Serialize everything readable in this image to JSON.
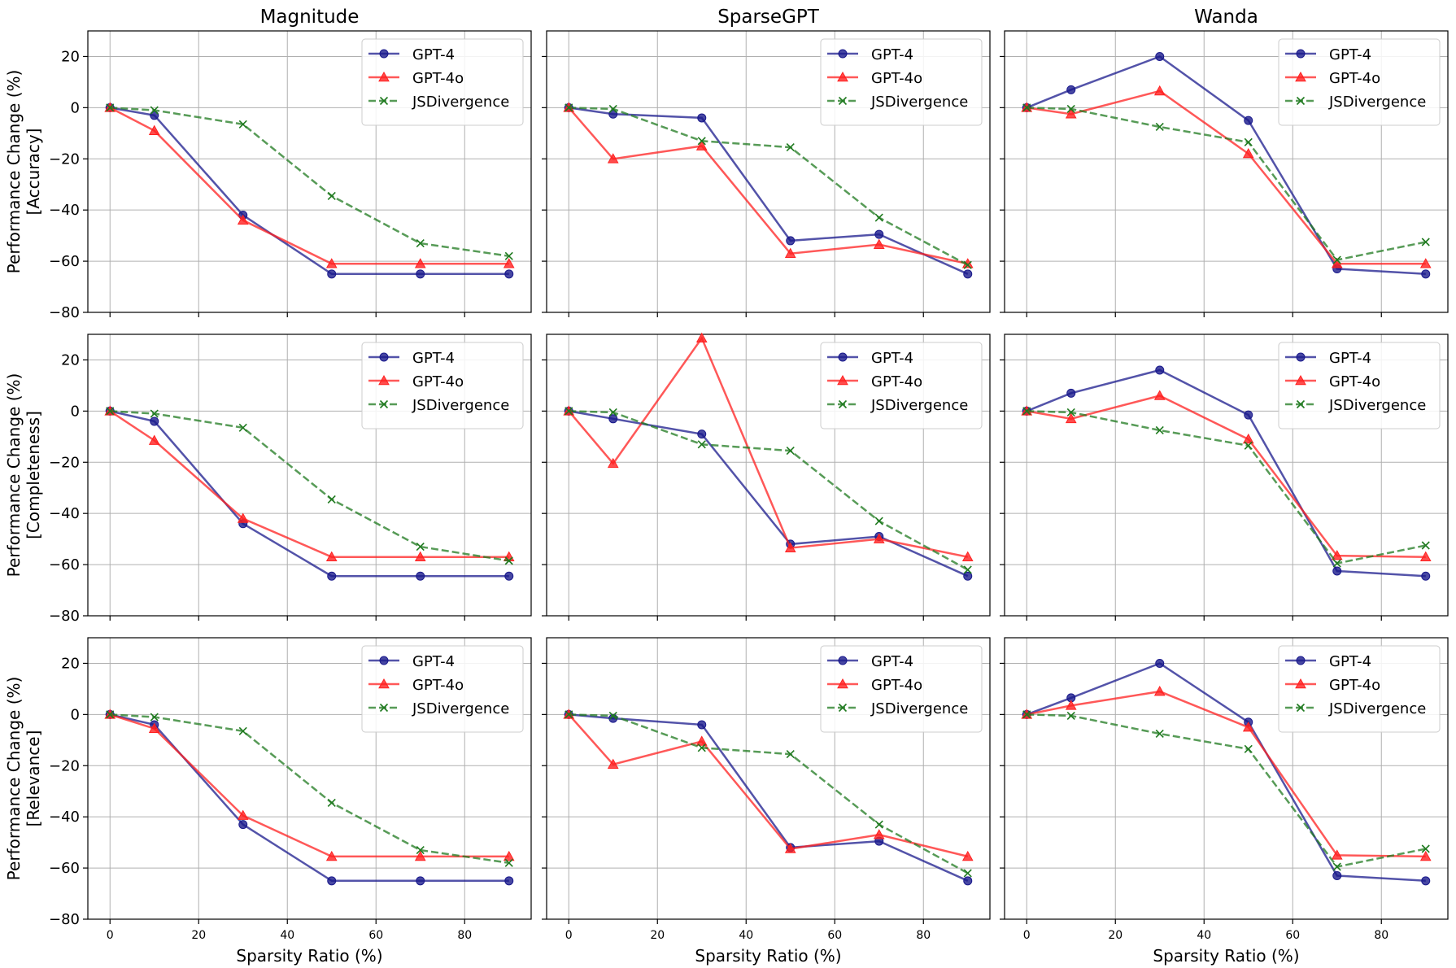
{
  "chart_data": {
    "type": "line",
    "column_titles": [
      "Magnitude",
      "SparseGPT",
      "Wanda"
    ],
    "row_labels": [
      [
        "Performance Change (%)",
        "[Accuracy]"
      ],
      [
        "Performance Change (%)",
        "[Completeness]"
      ],
      [
        "Performance Change (%)",
        "[Relevance]"
      ]
    ],
    "xlabel": "Sparsity Ratio (%)",
    "x": [
      0,
      10,
      30,
      50,
      70,
      90
    ],
    "xticks": [
      0,
      20,
      40,
      60,
      80
    ],
    "yticks": [
      20,
      0,
      -20,
      -40,
      -60,
      -80
    ],
    "xlim": [
      -5,
      95
    ],
    "ylim": [
      -80,
      30
    ],
    "grid": true,
    "legend_position": "upper right",
    "series_styles": [
      {
        "name": "GPT-4",
        "color": "#1a1a8c",
        "marker": "circle",
        "dash": "solid"
      },
      {
        "name": "GPT-4o",
        "color": "#ff2020",
        "marker": "triangle",
        "dash": "solid"
      },
      {
        "name": "JSDivergence",
        "color": "#1f7a1f",
        "marker": "x",
        "dash": "dashed"
      }
    ],
    "panels": [
      [
        {
          "title": "Magnitude",
          "series": [
            {
              "name": "GPT-4",
              "values": [
                0,
                -3,
                -42,
                -65,
                -65,
                -65
              ]
            },
            {
              "name": "GPT-4o",
              "values": [
                0,
                -9,
                -44,
                -61,
                -61,
                -61
              ]
            },
            {
              "name": "JSDivergence",
              "values": [
                0,
                -1,
                -6.5,
                -34.5,
                -53,
                -58
              ]
            }
          ]
        },
        {
          "title": "SparseGPT",
          "series": [
            {
              "name": "GPT-4",
              "values": [
                0,
                -2.5,
                -4,
                -52,
                -49.5,
                -65
              ]
            },
            {
              "name": "GPT-4o",
              "values": [
                0,
                -20,
                -15,
                -57,
                -53.5,
                -61
              ]
            },
            {
              "name": "JSDivergence",
              "values": [
                0,
                -0.5,
                -13,
                -15.5,
                -43,
                -61.5
              ]
            }
          ]
        },
        {
          "title": "Wanda",
          "series": [
            {
              "name": "GPT-4",
              "values": [
                0,
                7,
                20,
                -5,
                -63,
                -65
              ]
            },
            {
              "name": "GPT-4o",
              "values": [
                0,
                -2.5,
                6.5,
                -18,
                -61,
                -61
              ]
            },
            {
              "name": "JSDivergence",
              "values": [
                0,
                -0.5,
                -7.5,
                -13.5,
                -59.5,
                -52.5
              ]
            }
          ]
        }
      ],
      [
        {
          "title": "Magnitude",
          "series": [
            {
              "name": "GPT-4",
              "values": [
                0,
                -4,
                -44,
                -64.5,
                -64.5,
                -64.5
              ]
            },
            {
              "name": "GPT-4o",
              "values": [
                0,
                -11.5,
                -42,
                -57,
                -57,
                -57
              ]
            },
            {
              "name": "JSDivergence",
              "values": [
                0,
                -1,
                -6.5,
                -34.5,
                -53,
                -58.5
              ]
            }
          ]
        },
        {
          "title": "SparseGPT",
          "series": [
            {
              "name": "GPT-4",
              "values": [
                0,
                -3,
                -9,
                -52,
                -49,
                -64.5
              ]
            },
            {
              "name": "GPT-4o",
              "values": [
                0,
                -20.5,
                28.5,
                -53.5,
                -50,
                -57
              ]
            },
            {
              "name": "JSDivergence",
              "values": [
                0,
                -0.5,
                -13,
                -15.5,
                -43,
                -62
              ]
            }
          ]
        },
        {
          "title": "Wanda",
          "series": [
            {
              "name": "GPT-4",
              "values": [
                0,
                7,
                16,
                -1.5,
                -62.5,
                -64.5
              ]
            },
            {
              "name": "GPT-4o",
              "values": [
                0,
                -3,
                6,
                -11,
                -56.5,
                -57
              ]
            },
            {
              "name": "JSDivergence",
              "values": [
                0,
                -0.5,
                -7.5,
                -13.5,
                -59.5,
                -52.5
              ]
            }
          ]
        }
      ],
      [
        {
          "title": "Magnitude",
          "series": [
            {
              "name": "GPT-4",
              "values": [
                0,
                -4,
                -43,
                -65,
                -65,
                -65
              ]
            },
            {
              "name": "GPT-4o",
              "values": [
                0,
                -5.5,
                -39.5,
                -55.5,
                -55.5,
                -55.5
              ]
            },
            {
              "name": "JSDivergence",
              "values": [
                0,
                -1,
                -6.5,
                -34.5,
                -53,
                -58
              ]
            }
          ]
        },
        {
          "title": "SparseGPT",
          "series": [
            {
              "name": "GPT-4",
              "values": [
                0,
                -1.5,
                -4,
                -52,
                -49.5,
                -65
              ]
            },
            {
              "name": "GPT-4o",
              "values": [
                0,
                -19.5,
                -10.5,
                -52.5,
                -47,
                -55.5
              ]
            },
            {
              "name": "JSDivergence",
              "values": [
                0,
                -0.5,
                -13,
                -15.5,
                -43,
                -62
              ]
            }
          ]
        },
        {
          "title": "Wanda",
          "series": [
            {
              "name": "GPT-4",
              "values": [
                0,
                6.5,
                20,
                -3,
                -63,
                -65
              ]
            },
            {
              "name": "GPT-4o",
              "values": [
                0,
                3.5,
                9,
                -5,
                -55,
                -55.5
              ]
            },
            {
              "name": "JSDivergence",
              "values": [
                0,
                -0.5,
                -7.5,
                -13.5,
                -59.5,
                -52.5
              ]
            }
          ]
        }
      ]
    ]
  }
}
